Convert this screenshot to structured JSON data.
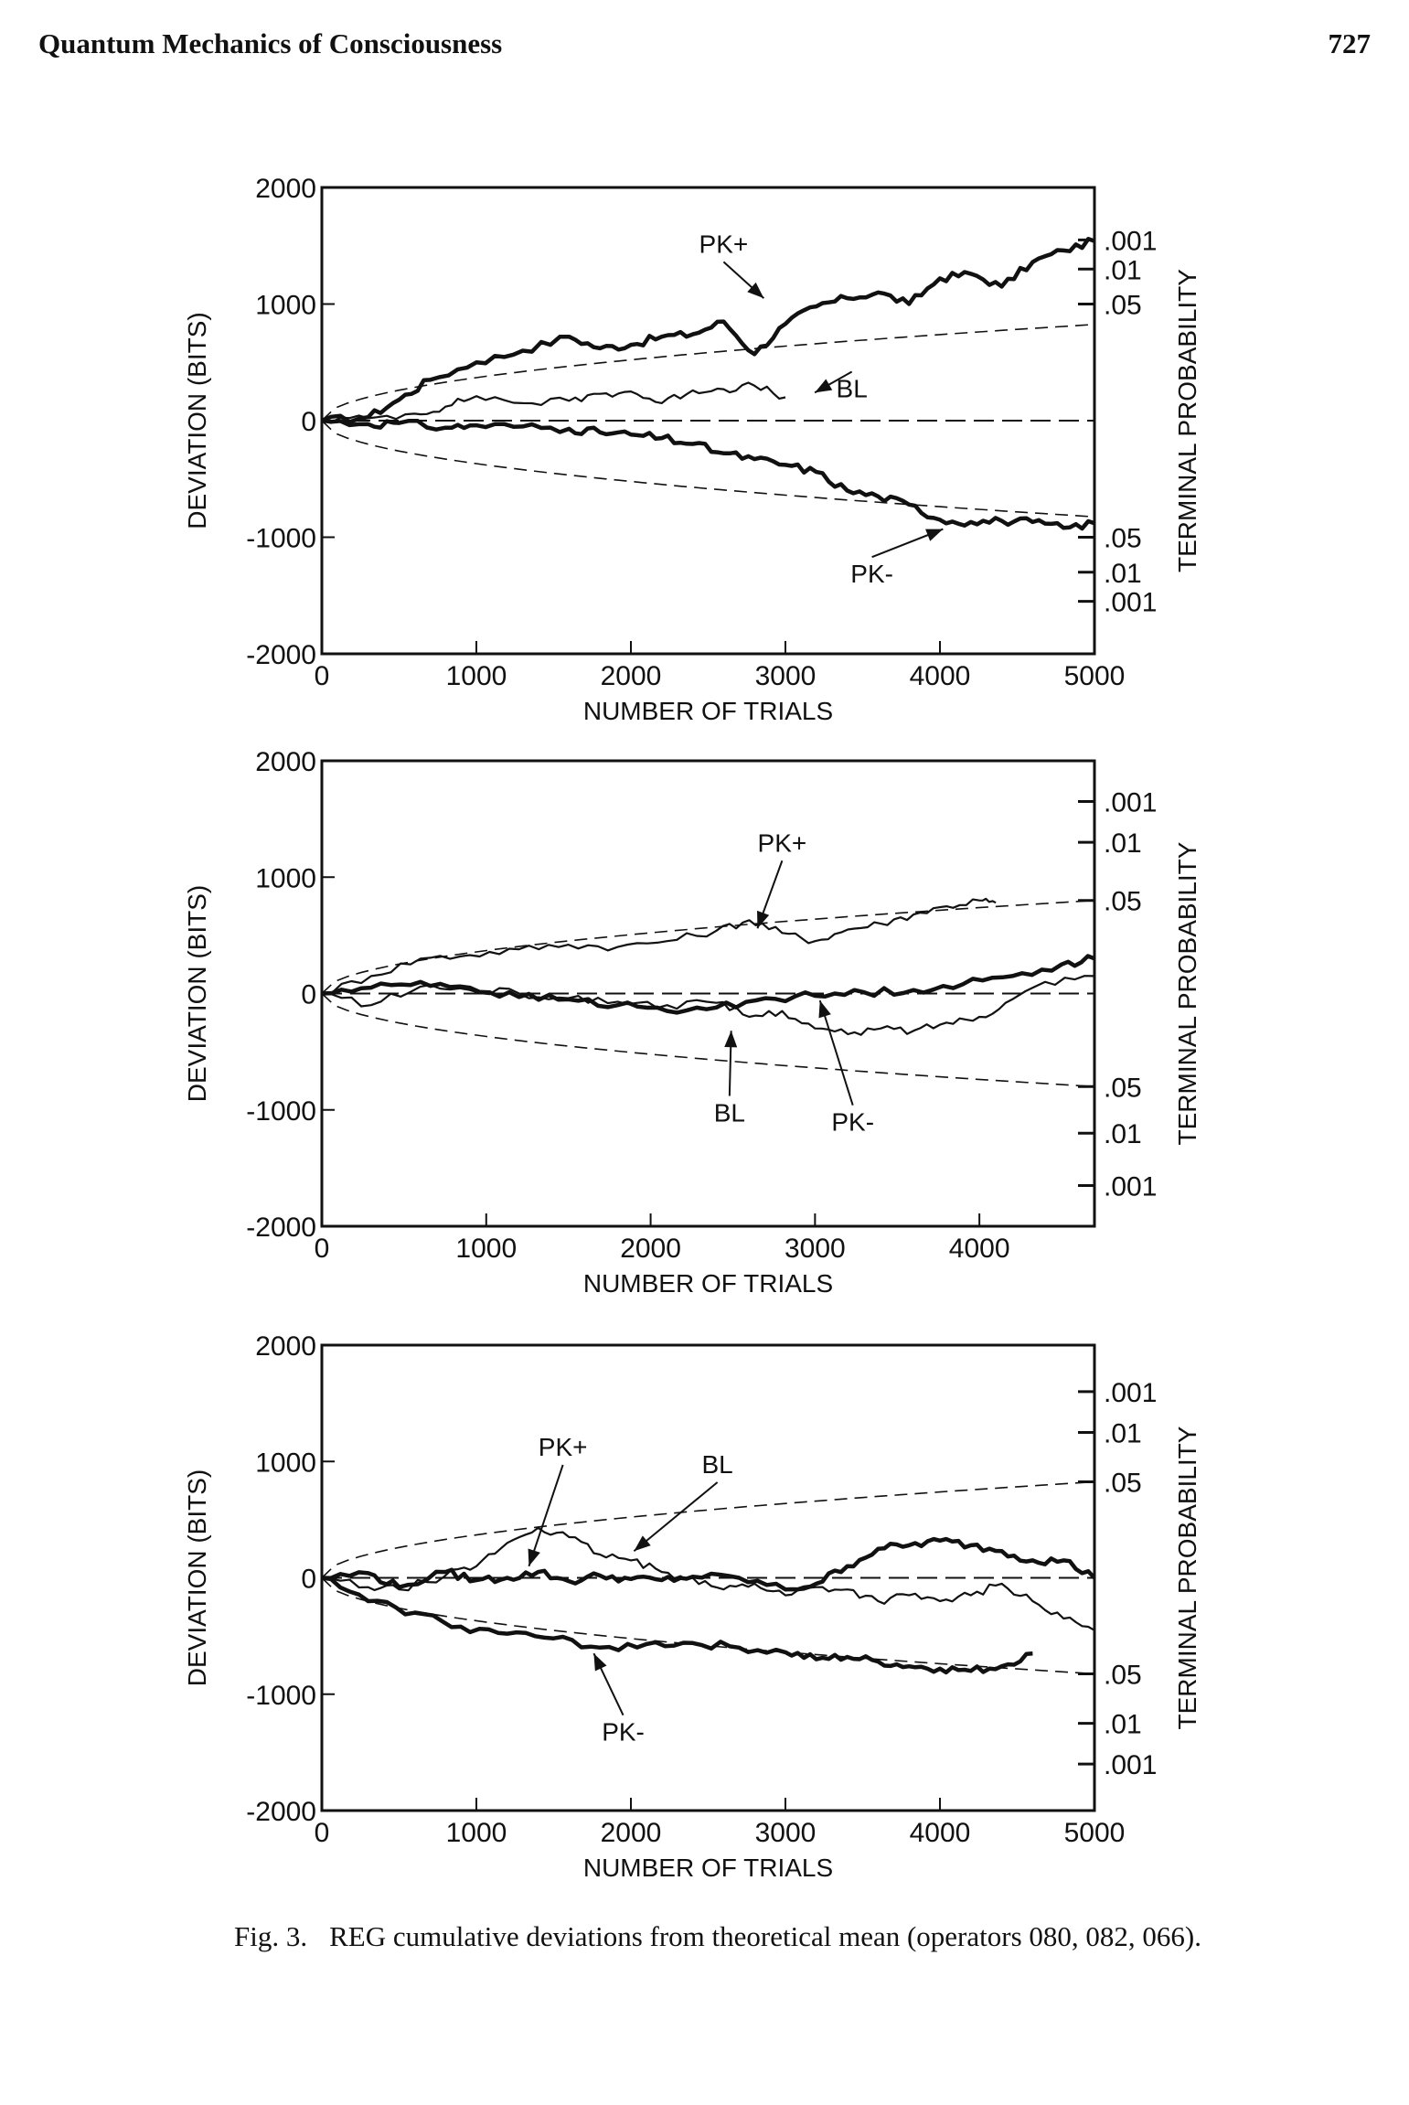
{
  "running_head": {
    "title": "Quantum Mechanics of Consciousness",
    "page_number": "727"
  },
  "caption": {
    "label": "Fig. 3.",
    "text": "REG cumulative deviations from theoretical mean (operators 080, 082, 066)."
  },
  "chart_data": [
    {
      "type": "line",
      "title": "",
      "xlabel": "NUMBER OF TRIALS",
      "ylabel": "DEVIATION (BITS)",
      "right_label": "TERMINAL PROBABILITY",
      "xlim": [
        0,
        5000
      ],
      "ylim": [
        -2000,
        2000
      ],
      "x_ticks": [
        0,
        1000,
        2000,
        3000,
        4000,
        5000
      ],
      "x_tick_labels": [
        "0",
        "1000",
        "2000",
        "3000",
        "4000",
        "5000"
      ],
      "y_ticks": [
        2000,
        1000,
        0,
        -1000,
        -2000
      ],
      "y_tick_labels": [
        "2000",
        "1000",
        "0",
        "-1000",
        "-2000"
      ],
      "envelope": {
        "style": "dashed",
        "value_at_xmax": 825
      },
      "probability_ticks": [
        {
          "label": ".001",
          "y": 1550
        },
        {
          "label": ".01",
          "y": 1300
        },
        {
          "label": ".05",
          "y": 1000
        },
        {
          "label": ".05",
          "y": -1000
        },
        {
          "label": ".01",
          "y": -1300
        },
        {
          "label": ".001",
          "y": -1550
        }
      ],
      "series": [
        {
          "name": "PK+",
          "weight": "heavy",
          "x": [
            0,
            300,
            500,
            700,
            1000,
            1300,
            1600,
            1800,
            2000,
            2200,
            2400,
            2600,
            2800,
            3000,
            3200,
            3400,
            3600,
            3800,
            4000,
            4200,
            4400,
            4600,
            4800,
            5000
          ],
          "y": [
            0,
            30,
            180,
            350,
            500,
            600,
            720,
            620,
            650,
            720,
            740,
            850,
            570,
            830,
            980,
            1050,
            1100,
            1000,
            1220,
            1260,
            1150,
            1360,
            1460,
            1540
          ]
        },
        {
          "name": "BL",
          "weight": "light",
          "x": [
            0,
            300,
            600,
            800,
            1000,
            1300,
            1600,
            1800,
            2000,
            2200,
            2400,
            2600,
            2800,
            3000
          ],
          "y": [
            0,
            20,
            60,
            120,
            210,
            150,
            170,
            230,
            250,
            150,
            260,
            270,
            300,
            200
          ]
        },
        {
          "name": "PK-",
          "weight": "heavy",
          "x": [
            0,
            300,
            500,
            800,
            1000,
            1300,
            1600,
            1800,
            2000,
            2200,
            2400,
            2600,
            2800,
            3000,
            3200,
            3400,
            3600,
            3800,
            4000,
            4200,
            4400,
            4600,
            4800,
            5000
          ],
          "y": [
            0,
            -30,
            -20,
            -60,
            -40,
            -50,
            -70,
            -100,
            -120,
            -150,
            -200,
            -280,
            -330,
            -380,
            -440,
            -600,
            -650,
            -720,
            -850,
            -870,
            -860,
            -870,
            -920,
            -880
          ]
        }
      ],
      "annotations": [
        {
          "text": "PK+",
          "series": "PK+",
          "x": 2600,
          "y": 1440,
          "target_x": 2860,
          "target_y": 1050
        },
        {
          "text": "BL",
          "series": "BL",
          "x": 3430,
          "y": 200,
          "target_x": 3190,
          "target_y": 240
        },
        {
          "text": "PK-",
          "series": "PK-",
          "x": 3560,
          "y": -1390,
          "target_x": 4020,
          "target_y": -930
        }
      ]
    },
    {
      "type": "line",
      "title": "",
      "xlabel": "NUMBER OF TRIALS",
      "ylabel": "DEVIATION (BITS)",
      "right_label": "TERMINAL PROBABILITY",
      "xlim": [
        0,
        4700
      ],
      "ylim": [
        -2000,
        2000
      ],
      "x_ticks": [
        0,
        1000,
        2000,
        3000,
        4000
      ],
      "x_tick_labels": [
        "0",
        "1000",
        "2000",
        "3000",
        "4000"
      ],
      "y_ticks": [
        2000,
        1000,
        0,
        -1000,
        -2000
      ],
      "y_tick_labels": [
        "2000",
        "1000",
        "0",
        "-1000",
        "-2000"
      ],
      "envelope": {
        "style": "dashed",
        "value_at_xmax": 800
      },
      "probability_ticks": [
        {
          "label": ".001",
          "y": 1650
        },
        {
          "label": ".01",
          "y": 1300
        },
        {
          "label": ".05",
          "y": 800
        },
        {
          "label": ".05",
          "y": -800
        },
        {
          "label": ".01",
          "y": -1200
        },
        {
          "label": ".001",
          "y": -1650
        }
      ],
      "series": [
        {
          "name": "PK+",
          "weight": "light",
          "x": [
            0,
            300,
            600,
            900,
            1200,
            1500,
            1800,
            2100,
            2400,
            2600,
            2800,
            3000,
            3200,
            3400,
            3600,
            3800,
            4000,
            4100
          ],
          "y": [
            0,
            150,
            300,
            330,
            380,
            420,
            400,
            450,
            540,
            630,
            520,
            450,
            550,
            600,
            680,
            750,
            800,
            780
          ]
        },
        {
          "name": "BL",
          "weight": "heavy",
          "x": [
            0,
            300,
            600,
            900,
            1200,
            1500,
            1800,
            2100,
            2400,
            2700,
            3000,
            3300,
            3600,
            3900,
            4200,
            4500,
            4700
          ],
          "y": [
            0,
            50,
            100,
            50,
            -30,
            -50,
            -100,
            -150,
            -120,
            -40,
            -20,
            10,
            30,
            80,
            150,
            250,
            300
          ]
        },
        {
          "name": "PK-",
          "weight": "light",
          "x": [
            0,
            300,
            600,
            900,
            1200,
            1500,
            1800,
            2100,
            2400,
            2600,
            2800,
            3000,
            3200,
            3400,
            3600,
            3800,
            4000,
            4200,
            4400,
            4700
          ],
          "y": [
            0,
            -100,
            60,
            30,
            0,
            -40,
            -70,
            -100,
            -80,
            -200,
            -150,
            -300,
            -350,
            -300,
            -320,
            -250,
            -200,
            -50,
            100,
            150
          ]
        }
      ],
      "annotations": [
        {
          "text": "PK+",
          "series": "PK+",
          "x": 2800,
          "y": 1220,
          "target_x": 2650,
          "target_y": 560
        },
        {
          "text": "BL",
          "series": "BL",
          "x": 2480,
          "y": -1100,
          "target_x": 2490,
          "target_y": -320
        },
        {
          "text": "PK-",
          "series": "PK-",
          "x": 3230,
          "y": -1180,
          "target_x": 3030,
          "target_y": -60
        }
      ]
    },
    {
      "type": "line",
      "title": "",
      "xlabel": "NUMBER OF TRIALS",
      "ylabel": "DEVIATION (BITS)",
      "right_label": "TERMINAL PROBABILITY",
      "xlim": [
        0,
        5000
      ],
      "ylim": [
        -2000,
        2000
      ],
      "x_ticks": [
        0,
        1000,
        2000,
        3000,
        4000,
        5000
      ],
      "x_tick_labels": [
        "0",
        "1000",
        "2000",
        "3000",
        "4000",
        "5000"
      ],
      "y_ticks": [
        2000,
        1000,
        0,
        -1000,
        -2000
      ],
      "y_tick_labels": [
        "2000",
        "1000",
        "0",
        "-1000",
        "-2000"
      ],
      "envelope": {
        "style": "dashed",
        "value_at_xmax": 825
      },
      "probability_ticks": [
        {
          "label": ".001",
          "y": 1600
        },
        {
          "label": ".01",
          "y": 1250
        },
        {
          "label": ".05",
          "y": 825
        },
        {
          "label": ".05",
          "y": -825
        },
        {
          "label": ".01",
          "y": -1250
        },
        {
          "label": ".001",
          "y": -1600
        }
      ],
      "series": [
        {
          "name": "PK+",
          "weight": "heavy",
          "x": [
            0,
            300,
            500,
            800,
            1000,
            1200,
            1400,
            1600,
            1800,
            2000,
            2200,
            2400,
            2700,
            3000,
            3200,
            3400,
            3600,
            3800,
            4000,
            4200,
            4400,
            4600,
            4800,
            5000
          ],
          "y": [
            0,
            40,
            -80,
            50,
            -20,
            0,
            50,
            -30,
            20,
            -10,
            -20,
            10,
            0,
            -100,
            -50,
            100,
            250,
            280,
            320,
            280,
            230,
            150,
            150,
            0
          ]
        },
        {
          "name": "BL",
          "weight": "light",
          "x": [
            0,
            300,
            500,
            800,
            1000,
            1200,
            1400,
            1600,
            1800,
            2000,
            2200,
            2400,
            2600,
            2800,
            3000,
            3200,
            3400,
            3600,
            3800,
            4000,
            4200,
            4400,
            4600,
            4800,
            5000
          ],
          "y": [
            0,
            -80,
            -100,
            20,
            100,
            300,
            430,
            350,
            200,
            150,
            50,
            0,
            -100,
            -50,
            -150,
            -80,
            -100,
            -200,
            -150,
            -200,
            -150,
            -50,
            -200,
            -350,
            -450
          ]
        },
        {
          "name": "PK-",
          "weight": "heavy",
          "x": [
            0,
            300,
            600,
            900,
            1200,
            1500,
            1800,
            2100,
            2400,
            2700,
            3000,
            3200,
            3400,
            3600,
            3800,
            4000,
            4200,
            4400,
            4600
          ],
          "y": [
            0,
            -200,
            -300,
            -420,
            -480,
            -520,
            -600,
            -570,
            -560,
            -600,
            -640,
            -700,
            -680,
            -720,
            -760,
            -780,
            -800,
            -760,
            -650
          ]
        }
      ],
      "annotations": [
        {
          "text": "PK+",
          "series": "PK+",
          "x": 1560,
          "y": 1050,
          "target_x": 1340,
          "target_y": 100
        },
        {
          "text": "BL",
          "series": "BL",
          "x": 2560,
          "y": 900,
          "target_x": 2020,
          "target_y": 230
        },
        {
          "text": "PK-",
          "series": "PK-",
          "x": 1950,
          "y": -1400,
          "target_x": 1760,
          "target_y": -650
        }
      ]
    }
  ]
}
